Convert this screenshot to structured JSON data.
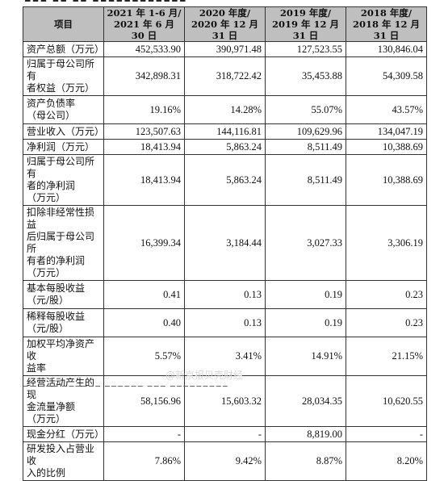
{
  "header": {
    "col0": "项目",
    "periods": [
      {
        "line1": "2021 年 1-6 月/",
        "line2": "2021 年 6 月 30 日"
      },
      {
        "line1": "2020 年度/",
        "line2": "2020 年 12 月 31 日"
      },
      {
        "line1": "2019 年度/",
        "line2": "2019 年 12 月 31 日"
      },
      {
        "line1": "2018 年度/",
        "line2": "2018 年 12 月 31 日"
      }
    ]
  },
  "rows": [
    {
      "label": "资产总额（万元）",
      "values": [
        "452,533.90",
        "390,971.48",
        "127,523.55",
        "130,846.04"
      ]
    },
    {
      "label": "归属于母公司所有\n者权益（万元）",
      "values": [
        "342,898.31",
        "318,722.42",
        "35,453.88",
        "54,309.58"
      ]
    },
    {
      "label": "资产负债率\n（母公司）",
      "values": [
        "19.16%",
        "14.28%",
        "55.07%",
        "43.57%"
      ]
    },
    {
      "label": "营业收入（万元）",
      "values": [
        "123,507.63",
        "144,116.81",
        "109,629.96",
        "134,047.19"
      ]
    },
    {
      "label": "净利润（万元）",
      "values": [
        "18,413.94",
        "5,863.24",
        "8,511.49",
        "10,388.69"
      ]
    },
    {
      "label": "归属于母公司所有\n者的净利润\n（万元）",
      "values": [
        "18,413.94",
        "5,863.24",
        "8,511.49",
        "10,388.69"
      ]
    },
    {
      "label": "扣除非经常性损益\n后归属于母公司所\n有者的净利润\n（万元）",
      "values": [
        "16,399.34",
        "3,184.44",
        "3,027.33",
        "3,306.19"
      ]
    },
    {
      "label": "基本每股收益\n（元/股）",
      "values": [
        "0.41",
        "0.13",
        "0.19",
        "0.23"
      ]
    },
    {
      "label": "稀释每股收益\n（元/股）",
      "values": [
        "0.40",
        "0.13",
        "0.19",
        "0.23"
      ]
    },
    {
      "label": "加权平均净资产收\n益率",
      "values": [
        "5.57%",
        "3.41%",
        "14.91%",
        "21.15%"
      ]
    },
    {
      "label": "经营活动产生的现\n金流量净额\n（万元）",
      "values": [
        "58,156.96",
        "15,603.32",
        "28,034.35",
        "10,620.55"
      ]
    },
    {
      "label": "现金分红（万元）",
      "values": [
        "-",
        "-",
        "8,819.00",
        "-"
      ]
    },
    {
      "label": "研发投入占营业收\n入的比例",
      "values": [
        "7.86%",
        "9.42%",
        "8.87%",
        "8.20%"
      ]
    }
  ],
  "watermark": "@新京报贝壳财经"
}
